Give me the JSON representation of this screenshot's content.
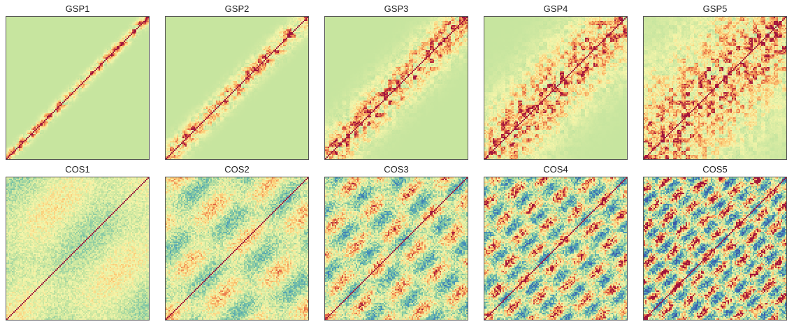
{
  "chart_data": [
    {
      "type": "heatmap",
      "title": "GSP1",
      "colormap": "Spectral",
      "band_width": 0.05
    },
    {
      "type": "heatmap",
      "title": "GSP2",
      "colormap": "Spectral",
      "band_width": 0.1
    },
    {
      "type": "heatmap",
      "title": "GSP3",
      "colormap": "Spectral",
      "band_width": 0.2
    },
    {
      "type": "heatmap",
      "title": "GSP4",
      "colormap": "Spectral",
      "band_width": 0.35
    },
    {
      "type": "heatmap",
      "title": "GSP5",
      "colormap": "Spectral",
      "band_width": 0.6
    },
    {
      "type": "heatmap",
      "title": "COS1",
      "colormap": "Spectral",
      "frequency": 1
    },
    {
      "type": "heatmap",
      "title": "COS2",
      "colormap": "Spectral",
      "frequency": 2
    },
    {
      "type": "heatmap",
      "title": "COS3",
      "colormap": "Spectral",
      "frequency": 3
    },
    {
      "type": "heatmap",
      "title": "COS4",
      "colormap": "Spectral",
      "frequency": 4
    },
    {
      "type": "heatmap",
      "title": "COS5",
      "colormap": "Spectral",
      "frequency": 5
    }
  ]
}
